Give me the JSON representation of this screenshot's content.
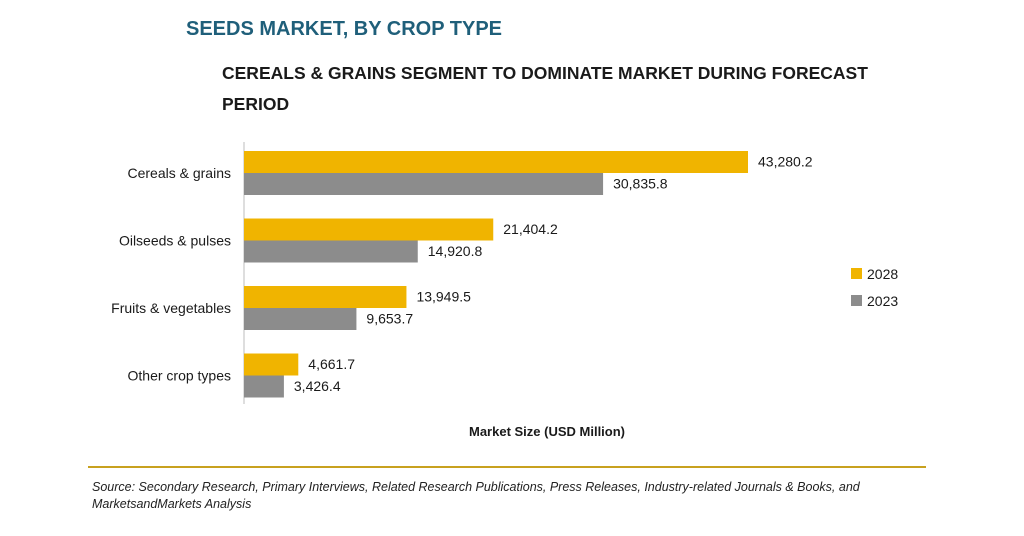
{
  "chart_data": {
    "type": "bar",
    "orientation": "horizontal",
    "title": "SEEDS MARKET, BY CROP TYPE",
    "subtitle": "CEREALS & GRAINS SEGMENT TO DOMINATE MARKET DURING FORECAST PERIOD",
    "xlabel": "Market Size (USD Million)",
    "ylabel": "",
    "categories": [
      "Cereals & grains",
      "Oilseeds & pulses",
      "Fruits & vegetables",
      "Other crop types"
    ],
    "series": [
      {
        "name": "2028",
        "color": "#f0b400",
        "values": [
          43280.2,
          21404.2,
          13949.5,
          4661.7
        ],
        "labels": [
          "43,280.2",
          "21,404.2",
          "13,949.5",
          "4,661.7"
        ]
      },
      {
        "name": "2023",
        "color": "#8c8c8c",
        "values": [
          30835.8,
          14920.8,
          9653.7,
          3426.4
        ],
        "labels": [
          "30,835.8",
          "14,920.8",
          "9,653.7",
          "3,426.4"
        ]
      }
    ],
    "xlim": [
      0,
      43280.2
    ],
    "grid": false,
    "legend": "right"
  },
  "source": "Source: Secondary Research, Primary Interviews, Related Research Publications, Press Releases, Industry-related Journals & Books, and MarketsandMarkets Analysis"
}
